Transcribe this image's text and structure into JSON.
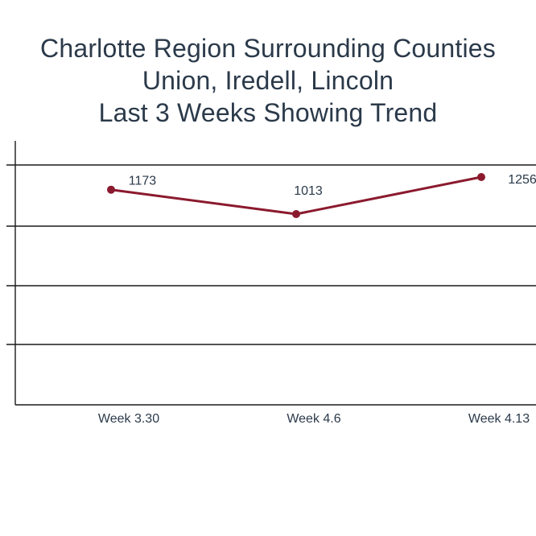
{
  "chart_data": {
    "type": "line",
    "title_lines": [
      "Charlotte Region Surrounding Counties",
      "Union, Iredell, Lincoln",
      "Last 3 Weeks Showing Trend"
    ],
    "categories": [
      "Week 3.30",
      "Week 4.6",
      "Week 4.13"
    ],
    "series": [
      {
        "values": [
          1173,
          1013,
          1256
        ],
        "color": "#8b1a2e"
      }
    ],
    "grid": true,
    "colors": {
      "title": "#2b3a4a",
      "axis": "#1a1a1a",
      "line": "#8b1a2e"
    }
  }
}
